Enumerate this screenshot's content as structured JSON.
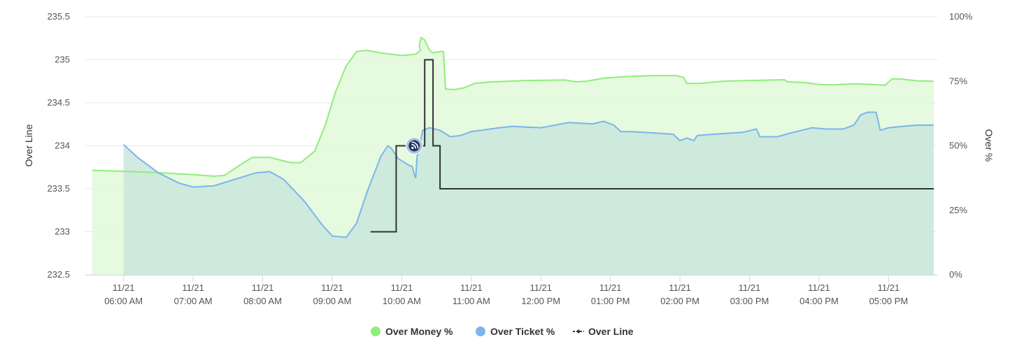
{
  "chart_data": {
    "type": "line",
    "y_left": {
      "label": "Over Line",
      "ticks": [
        "235.5",
        "235",
        "234.5",
        "234",
        "233.5",
        "233",
        "232.5"
      ],
      "range": [
        232.5,
        235.5
      ]
    },
    "y_right": {
      "label": "Over %",
      "ticks": [
        "100%",
        "75%",
        "50%",
        "25%",
        "0%"
      ],
      "range": [
        0,
        100
      ]
    },
    "x_ticks": [
      {
        "date": "11/21",
        "time": "06:00 AM",
        "h": 6
      },
      {
        "date": "11/21",
        "time": "07:00 AM",
        "h": 7
      },
      {
        "date": "11/21",
        "time": "08:00 AM",
        "h": 8
      },
      {
        "date": "11/21",
        "time": "09:00 AM",
        "h": 9
      },
      {
        "date": "11/21",
        "time": "10:00 AM",
        "h": 10
      },
      {
        "date": "11/21",
        "time": "11:00 AM",
        "h": 11
      },
      {
        "date": "11/21",
        "time": "12:00 PM",
        "h": 12
      },
      {
        "date": "11/21",
        "time": "01:00 PM",
        "h": 13
      },
      {
        "date": "11/21",
        "time": "02:00 PM",
        "h": 14
      },
      {
        "date": "11/21",
        "time": "03:00 PM",
        "h": 15
      },
      {
        "date": "11/21",
        "time": "04:00 PM",
        "h": 16
      },
      {
        "date": "11/21",
        "time": "05:00 PM",
        "h": 17
      }
    ],
    "x_range": [
      5.45,
      17.7
    ],
    "grid": true,
    "legend_position": "bottom-center",
    "series": [
      {
        "name": "Over Money %",
        "axis": "right",
        "type": "area",
        "color": "#90ed7d",
        "fill": "#e1f9d8",
        "points": [
          [
            5.55,
            40.5
          ],
          [
            6.0,
            40.1
          ],
          [
            6.5,
            39.6
          ],
          [
            7.0,
            38.8
          ],
          [
            7.3,
            38.2
          ],
          [
            7.45,
            38.5
          ],
          [
            7.7,
            43
          ],
          [
            7.85,
            45.5
          ],
          [
            8.1,
            45.5
          ],
          [
            8.4,
            43.5
          ],
          [
            8.55,
            43.5
          ],
          [
            8.75,
            48
          ],
          [
            8.9,
            58
          ],
          [
            9.05,
            71
          ],
          [
            9.2,
            81
          ],
          [
            9.35,
            86.5
          ],
          [
            9.5,
            87
          ],
          [
            9.7,
            86
          ],
          [
            10.0,
            85
          ],
          [
            10.2,
            85.5
          ],
          [
            10.27,
            87
          ],
          [
            10.25,
            89
          ],
          [
            10.28,
            92
          ],
          [
            10.33,
            91
          ],
          [
            10.4,
            87
          ],
          [
            10.45,
            86
          ],
          [
            10.55,
            86.5
          ],
          [
            10.6,
            86.5
          ],
          [
            10.63,
            72
          ],
          [
            10.75,
            71.8
          ],
          [
            10.9,
            72.5
          ],
          [
            11.05,
            74.2
          ],
          [
            11.3,
            74.8
          ],
          [
            11.8,
            75.3
          ],
          [
            12.35,
            75.5
          ],
          [
            12.5,
            74.8
          ],
          [
            12.65,
            75
          ],
          [
            12.9,
            76.2
          ],
          [
            13.2,
            76.8
          ],
          [
            13.6,
            77.2
          ],
          [
            13.95,
            77.2
          ],
          [
            14.05,
            76.5
          ],
          [
            14.1,
            74.2
          ],
          [
            14.3,
            74.2
          ],
          [
            14.6,
            75
          ],
          [
            15.0,
            75.3
          ],
          [
            15.5,
            75.6
          ],
          [
            15.55,
            74.8
          ],
          [
            15.8,
            74.5
          ],
          [
            16.0,
            73.8
          ],
          [
            16.2,
            73.6
          ],
          [
            16.5,
            74
          ],
          [
            16.75,
            73.8
          ],
          [
            16.95,
            73.5
          ],
          [
            17.05,
            76
          ],
          [
            17.2,
            75.8
          ],
          [
            17.4,
            75.2
          ],
          [
            17.65,
            75
          ]
        ]
      },
      {
        "name": "Over Ticket %",
        "axis": "right",
        "type": "area",
        "color": "#7cb5ec",
        "fill": "#c9e6dd",
        "points": [
          [
            6.0,
            50.5
          ],
          [
            6.2,
            45.5
          ],
          [
            6.5,
            39.5
          ],
          [
            6.8,
            35.5
          ],
          [
            7.0,
            34
          ],
          [
            7.3,
            34.5
          ],
          [
            7.6,
            37
          ],
          [
            7.9,
            39.5
          ],
          [
            8.1,
            40
          ],
          [
            8.3,
            37
          ],
          [
            8.6,
            28.5
          ],
          [
            8.85,
            19.5
          ],
          [
            9.0,
            15
          ],
          [
            9.2,
            14.5
          ],
          [
            9.35,
            20
          ],
          [
            9.5,
            32
          ],
          [
            9.7,
            46
          ],
          [
            9.8,
            50
          ],
          [
            9.85,
            49
          ],
          [
            9.95,
            45
          ],
          [
            10.1,
            42.5
          ],
          [
            10.15,
            42
          ],
          [
            10.18,
            39
          ],
          [
            10.2,
            37.5
          ],
          [
            10.22,
            46
          ],
          [
            10.25,
            48.5
          ],
          [
            10.3,
            56
          ],
          [
            10.4,
            57
          ],
          [
            10.55,
            56
          ],
          [
            10.7,
            53.5
          ],
          [
            10.85,
            54
          ],
          [
            11.0,
            55.5
          ],
          [
            11.4,
            57
          ],
          [
            11.6,
            57.5
          ],
          [
            12.0,
            57
          ],
          [
            12.4,
            59
          ],
          [
            12.75,
            58.5
          ],
          [
            12.9,
            59.5
          ],
          [
            13.05,
            58
          ],
          [
            13.15,
            55.5
          ],
          [
            13.3,
            55.5
          ],
          [
            13.6,
            55
          ],
          [
            13.9,
            54.5
          ],
          [
            14.0,
            52
          ],
          [
            14.1,
            53
          ],
          [
            14.2,
            52
          ],
          [
            14.25,
            54
          ],
          [
            14.5,
            54.5
          ],
          [
            14.9,
            55.2
          ],
          [
            15.1,
            56.5
          ],
          [
            15.15,
            53.5
          ],
          [
            15.4,
            53.5
          ],
          [
            15.6,
            55
          ],
          [
            15.9,
            57
          ],
          [
            16.1,
            56.5
          ],
          [
            16.35,
            56.5
          ],
          [
            16.5,
            58
          ],
          [
            16.6,
            62
          ],
          [
            16.7,
            63
          ],
          [
            16.82,
            63
          ],
          [
            16.88,
            56
          ],
          [
            17.0,
            57
          ],
          [
            17.2,
            57.5
          ],
          [
            17.4,
            58
          ],
          [
            17.65,
            58
          ]
        ]
      },
      {
        "name": "Over Line",
        "axis": "left",
        "type": "step",
        "color": "#333333",
        "marker": true,
        "points": [
          [
            9.55,
            233
          ],
          [
            9.92,
            233
          ],
          [
            9.92,
            234
          ],
          [
            10.33,
            234
          ],
          [
            10.33,
            235
          ],
          [
            10.45,
            235
          ],
          [
            10.45,
            234
          ],
          [
            10.55,
            234
          ],
          [
            10.55,
            233.5
          ],
          [
            17.65,
            233.5
          ]
        ],
        "highlight": [
          10.18,
          234
        ]
      }
    ]
  }
}
